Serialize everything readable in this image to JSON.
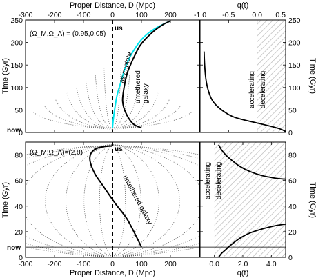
{
  "chart_data": [
    {
      "type": "line",
      "panel": "top-left",
      "title": "",
      "xlabel_top": "Proper Distance, D (Mpc)",
      "ylabel": "Time (Gyr)",
      "xlim": [
        -300,
        300
      ],
      "ylim": [
        0,
        250
      ],
      "xticks": [
        "-300",
        "-200",
        "-100",
        "0",
        "100",
        "200"
      ],
      "yticks": [
        "0",
        "50",
        "100",
        "150",
        "200",
        "250"
      ],
      "parameter_label": "(Ω_M,Ω_Λ) = (0.95,0.05)",
      "annotations": [
        "us",
        "now",
        "asymptote",
        "untethered galaxy"
      ],
      "now_time": 10,
      "series": [
        {
          "name": "untethered galaxy",
          "x": [
            100,
            70,
            45,
            35,
            40,
            50,
            62,
            76,
            92,
            110,
            130,
            152,
            175,
            200
          ],
          "y": [
            10,
            20,
            45,
            70,
            100,
            130,
            150,
            170,
            190,
            205,
            218,
            230,
            240,
            248
          ]
        },
        {
          "name": "asymptote",
          "x": [
            0,
            5,
            15,
            28,
            42,
            58,
            76,
            98,
            122,
            150,
            180,
            200
          ],
          "y": [
            10,
            40,
            80,
            110,
            140,
            165,
            185,
            205,
            220,
            232,
            242,
            248
          ]
        }
      ]
    },
    {
      "type": "line",
      "panel": "top-right",
      "xlabel_top": "q(t)",
      "ylabel": "Time (Gyr)",
      "xlim": [
        -1.0,
        0.5
      ],
      "ylim": [
        0,
        250
      ],
      "xticks": [
        "-1.0",
        "-0.5",
        "0.0",
        "0.5"
      ],
      "yticks": [
        "0",
        "50",
        "100",
        "150",
        "200",
        "250"
      ],
      "regions": [
        "accelerating",
        "decelerating"
      ],
      "series": [
        {
          "name": "q(t)",
          "x": [
            -0.93,
            -0.92,
            -0.9,
            -0.87,
            -0.82,
            -0.75,
            -0.6,
            -0.4,
            -0.1,
            0.2,
            0.4,
            0.5
          ],
          "y": [
            180,
            150,
            120,
            100,
            80,
            65,
            48,
            34,
            24,
            15,
            8,
            2
          ]
        }
      ]
    },
    {
      "type": "line",
      "panel": "bottom-left",
      "xlabel": "Proper Distance, D (Mpc)",
      "ylabel": "Time (Gyr)",
      "xlim": [
        -300,
        300
      ],
      "ylim": [
        0,
        90
      ],
      "xticks": [
        "-300",
        "-200",
        "-100",
        "0",
        "100",
        "200"
      ],
      "yticks": [
        "0",
        "20",
        "40",
        "60",
        "80"
      ],
      "parameter_label": "(Ω_M,Ω_Λ)=(2,0)",
      "annotations": [
        "us",
        "now",
        "untethered galaxy"
      ],
      "now_time": 8,
      "series": [
        {
          "name": "untethered galaxy",
          "x": [
            100,
            85,
            50,
            10,
            -30,
            -60,
            -75,
            -78,
            -72,
            -55,
            -30,
            0
          ],
          "y": [
            8,
            15,
            30,
            42,
            55,
            65,
            73,
            78,
            82,
            85,
            86.5,
            87
          ]
        }
      ]
    },
    {
      "type": "line",
      "panel": "bottom-right",
      "xlabel": "q(t)",
      "ylabel": "Time (Gyr)",
      "xlim": [
        -1.0,
        5.0
      ],
      "ylim": [
        0,
        90
      ],
      "xticks": [
        "0.0",
        "2.0",
        "4.0"
      ],
      "yticks": [
        "0",
        "20",
        "40",
        "60",
        "80"
      ],
      "regions": [
        "accelerating",
        "decelerating"
      ],
      "series": [
        {
          "name": "q(t) early",
          "x": [
            0.3,
            0.5,
            0.8,
            1.2,
            1.8,
            2.5,
            3.3,
            4.2,
            5.0
          ],
          "y": [
            0,
            3,
            6,
            10,
            15,
            19,
            22,
            24.5,
            26
          ]
        },
        {
          "name": "q(t) late",
          "x": [
            0.3,
            0.5,
            0.8,
            1.2,
            1.8,
            2.5,
            3.3,
            4.2,
            5.0
          ],
          "y": [
            88,
            84,
            80,
            76,
            71,
            67,
            64,
            62,
            61
          ]
        }
      ]
    }
  ]
}
